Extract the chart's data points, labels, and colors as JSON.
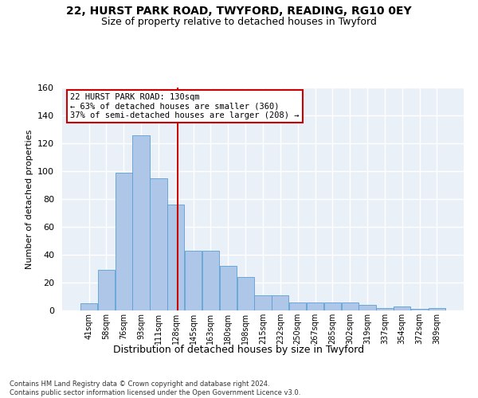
{
  "title1": "22, HURST PARK ROAD, TWYFORD, READING, RG10 0EY",
  "title2": "Size of property relative to detached houses in Twyford",
  "xlabel": "Distribution of detached houses by size in Twyford",
  "ylabel": "Number of detached properties",
  "categories": [
    "41sqm",
    "58sqm",
    "76sqm",
    "93sqm",
    "111sqm",
    "128sqm",
    "145sqm",
    "163sqm",
    "180sqm",
    "198sqm",
    "215sqm",
    "232sqm",
    "250sqm",
    "267sqm",
    "285sqm",
    "302sqm",
    "319sqm",
    "337sqm",
    "354sqm",
    "372sqm",
    "389sqm"
  ],
  "values": [
    5,
    29,
    99,
    126,
    95,
    76,
    43,
    43,
    32,
    24,
    11,
    11,
    6,
    6,
    6,
    6,
    4,
    2,
    3,
    1,
    2
  ],
  "bar_color": "#aec6e8",
  "bar_edge_color": "#5a9fd4",
  "vline_color": "#cc0000",
  "annotation_text": "22 HURST PARK ROAD: 130sqm\n← 63% of detached houses are smaller (360)\n37% of semi-detached houses are larger (208) →",
  "annotation_box_color": "#ffffff",
  "annotation_box_edge": "#cc0000",
  "ylim": [
    0,
    160
  ],
  "yticks": [
    0,
    20,
    40,
    60,
    80,
    100,
    120,
    140,
    160
  ],
  "bg_color": "#eaf0f8",
  "grid_color": "#ffffff",
  "footer": "Contains HM Land Registry data © Crown copyright and database right 2024.\nContains public sector information licensed under the Open Government Licence v3.0.",
  "property_sqm": 130
}
